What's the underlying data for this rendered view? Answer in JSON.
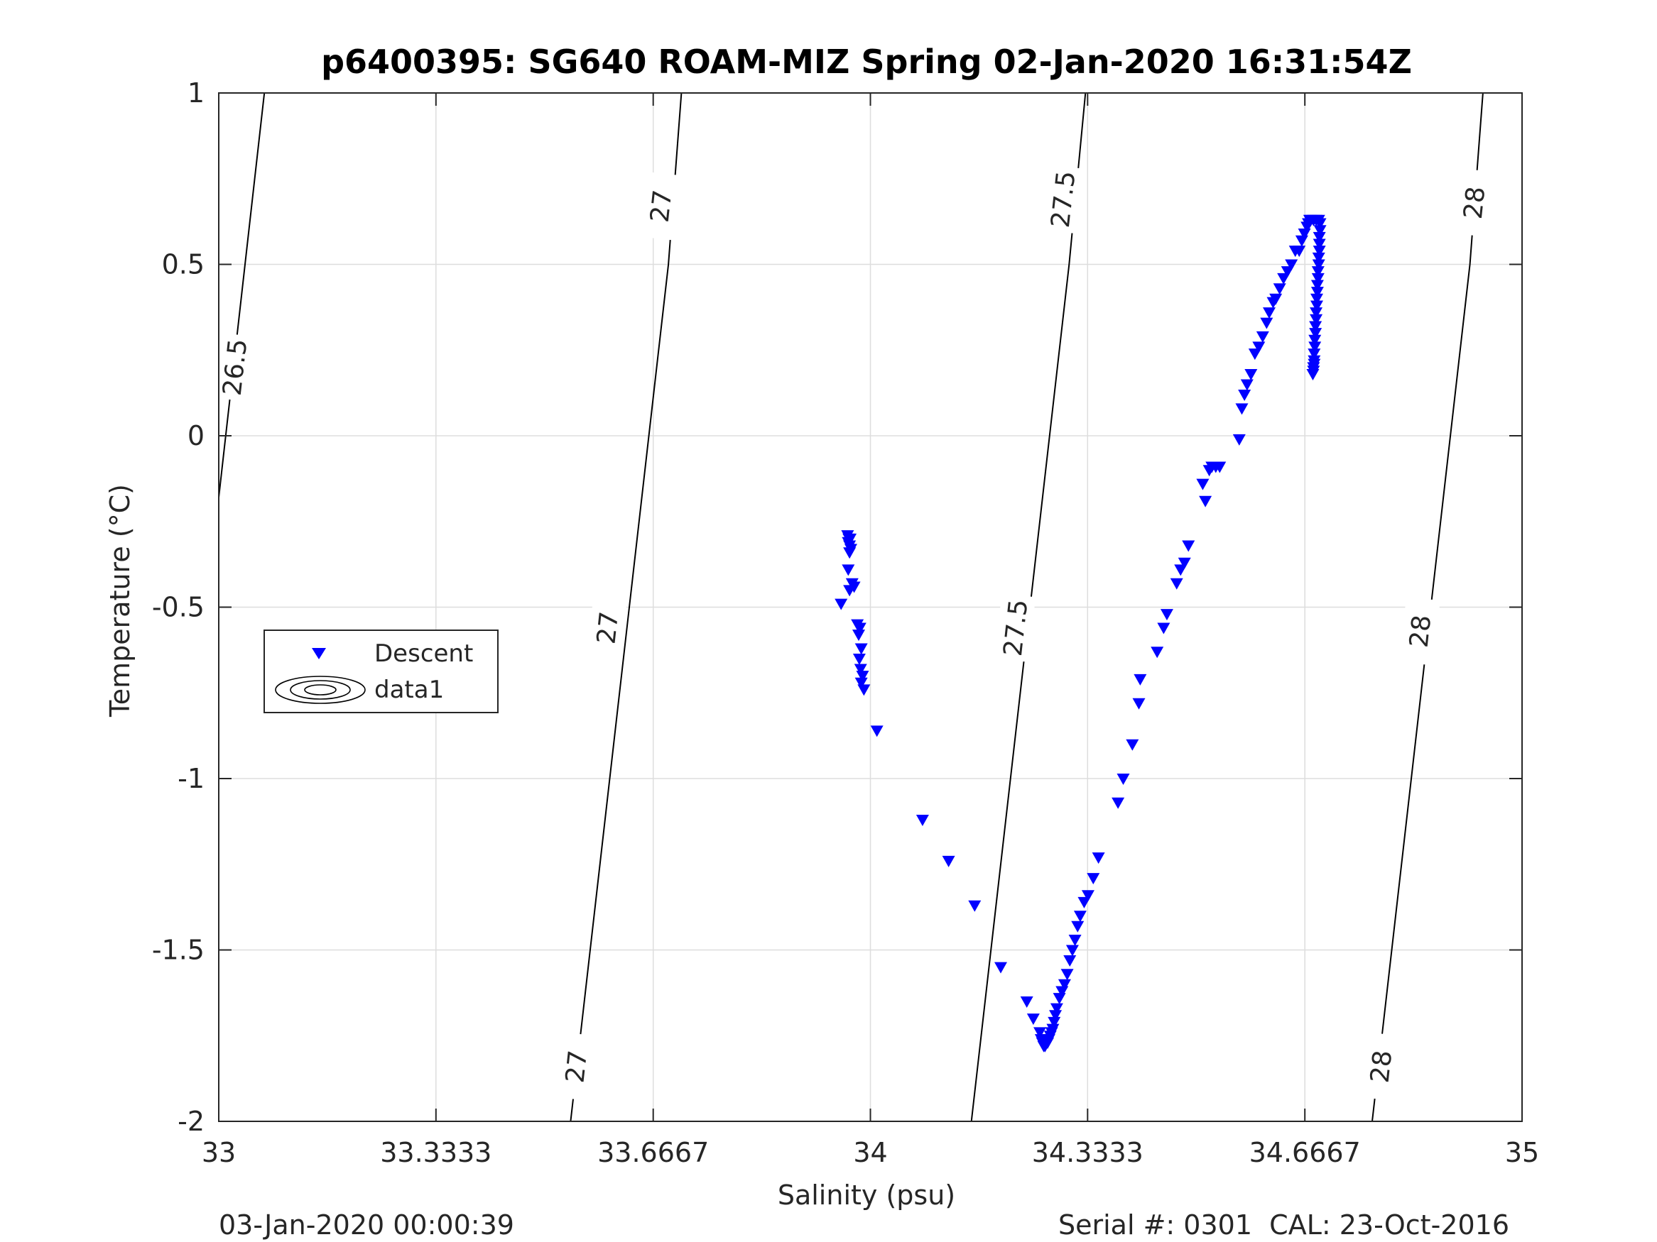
{
  "chart_data": {
    "type": "scatter",
    "title": "p6400395: SG640 ROAM-MIZ Spring 02-Jan-2020 16:31:54Z",
    "xlabel": "Salinity (psu)",
    "ylabel": "Temperature (°C)",
    "xlim": [
      33,
      35
    ],
    "ylim": [
      -2,
      1
    ],
    "xticks": [
      {
        "value": 33,
        "label": "33"
      },
      {
        "value": 33.3333,
        "label": "33.3333"
      },
      {
        "value": 33.6667,
        "label": "33.6667"
      },
      {
        "value": 34,
        "label": "34"
      },
      {
        "value": 34.3333,
        "label": "34.3333"
      },
      {
        "value": 34.6667,
        "label": "34.6667"
      },
      {
        "value": 35,
        "label": "35"
      }
    ],
    "yticks": [
      {
        "value": 1,
        "label": "1"
      },
      {
        "value": 0.5,
        "label": "0.5"
      },
      {
        "value": 0,
        "label": "0"
      },
      {
        "value": -0.5,
        "label": "-0.5"
      },
      {
        "value": -1,
        "label": "-1"
      },
      {
        "value": -1.5,
        "label": "-1.5"
      },
      {
        "value": -2,
        "label": "-2"
      }
    ],
    "grid": true,
    "legend": {
      "placement": "middle-left",
      "entries": [
        {
          "label": "Descent",
          "marker": "triangle-down",
          "color": "#0000ff"
        },
        {
          "label": "data1",
          "marker": "contour",
          "color": "#000000"
        }
      ]
    },
    "footer_left": "03-Jan-2020 00:00:39",
    "footer_right": "Serial #: 0301  CAL: 23-Oct-2016",
    "contours": [
      {
        "level": "26.5",
        "points": [
          [
            33.0,
            -0.18
          ],
          [
            33.07,
            1.0
          ]
        ],
        "labels": [
          {
            "x": 33.024,
            "y": 0.2
          }
        ]
      },
      {
        "level": "27",
        "points": [
          [
            33.54,
            -2.0
          ],
          [
            33.69,
            0.5
          ],
          [
            33.71,
            1.0
          ]
        ],
        "labels": [
          {
            "x": 33.678,
            "y": 0.67
          },
          {
            "x": 33.596,
            "y": -0.56
          },
          {
            "x": 33.548,
            "y": -1.84
          }
        ]
      },
      {
        "level": "27.5",
        "points": [
          [
            34.155,
            -2.0
          ],
          [
            34.305,
            0.5
          ],
          [
            34.33,
            1.0
          ]
        ],
        "labels": [
          {
            "x": 34.295,
            "y": 0.69
          },
          {
            "x": 34.222,
            "y": -0.56
          }
        ]
      },
      {
        "level": "28",
        "points": [
          [
            34.77,
            -2.0
          ],
          [
            34.92,
            0.5
          ],
          [
            34.94,
            1.0
          ]
        ],
        "labels": [
          {
            "x": 34.926,
            "y": 0.68
          },
          {
            "x": 34.843,
            "y": -0.57
          },
          {
            "x": 34.783,
            "y": -1.84
          }
        ]
      }
    ],
    "series": [
      {
        "name": "Descent",
        "marker": "triangle-down",
        "color": "#0000ff",
        "points": [
          [
            33.965,
            -0.29
          ],
          [
            33.967,
            -0.3
          ],
          [
            33.969,
            -0.3
          ],
          [
            33.966,
            -0.31
          ],
          [
            33.968,
            -0.32
          ],
          [
            33.97,
            -0.33
          ],
          [
            33.968,
            -0.34
          ],
          [
            33.966,
            -0.39
          ],
          [
            33.972,
            -0.43
          ],
          [
            33.968,
            -0.45
          ],
          [
            33.975,
            -0.44
          ],
          [
            33.955,
            -0.49
          ],
          [
            33.98,
            -0.55
          ],
          [
            33.984,
            -0.56
          ],
          [
            33.982,
            -0.58
          ],
          [
            33.986,
            -0.62
          ],
          [
            33.983,
            -0.65
          ],
          [
            33.985,
            -0.68
          ],
          [
            33.988,
            -0.7
          ],
          [
            33.986,
            -0.72
          ],
          [
            33.99,
            -0.74
          ],
          [
            34.01,
            -0.86
          ],
          [
            34.08,
            -1.12
          ],
          [
            34.12,
            -1.24
          ],
          [
            34.16,
            -1.37
          ],
          [
            34.2,
            -1.55
          ],
          [
            34.24,
            -1.65
          ],
          [
            34.25,
            -1.7
          ],
          [
            34.26,
            -1.74
          ],
          [
            34.262,
            -1.76
          ],
          [
            34.264,
            -1.77
          ],
          [
            34.266,
            -1.78
          ],
          [
            34.268,
            -1.78
          ],
          [
            34.27,
            -1.77
          ],
          [
            34.272,
            -1.77
          ],
          [
            34.274,
            -1.76
          ],
          [
            34.276,
            -1.75
          ],
          [
            34.278,
            -1.74
          ],
          [
            34.28,
            -1.73
          ],
          [
            34.282,
            -1.71
          ],
          [
            34.284,
            -1.69
          ],
          [
            34.286,
            -1.67
          ],
          [
            34.29,
            -1.64
          ],
          [
            34.294,
            -1.62
          ],
          [
            34.298,
            -1.6
          ],
          [
            34.302,
            -1.57
          ],
          [
            34.306,
            -1.53
          ],
          [
            34.31,
            -1.5
          ],
          [
            34.314,
            -1.47
          ],
          [
            34.318,
            -1.43
          ],
          [
            34.322,
            -1.4
          ],
          [
            34.328,
            -1.36
          ],
          [
            34.334,
            -1.34
          ],
          [
            34.342,
            -1.29
          ],
          [
            34.35,
            -1.23
          ],
          [
            34.38,
            -1.07
          ],
          [
            34.388,
            -1.0
          ],
          [
            34.402,
            -0.9
          ],
          [
            34.412,
            -0.78
          ],
          [
            34.414,
            -0.71
          ],
          [
            34.44,
            -0.63
          ],
          [
            34.45,
            -0.56
          ],
          [
            34.455,
            -0.52
          ],
          [
            34.47,
            -0.43
          ],
          [
            34.476,
            -0.39
          ],
          [
            34.482,
            -0.37
          ],
          [
            34.488,
            -0.32
          ],
          [
            34.51,
            -0.14
          ],
          [
            34.514,
            -0.19
          ],
          [
            34.52,
            -0.1
          ],
          [
            34.524,
            -0.09
          ],
          [
            34.53,
            -0.09
          ],
          [
            34.536,
            -0.09
          ],
          [
            34.566,
            -0.01
          ],
          [
            34.57,
            0.08
          ],
          [
            34.574,
            0.12
          ],
          [
            34.578,
            0.15
          ],
          [
            34.584,
            0.18
          ],
          [
            34.59,
            0.24
          ],
          [
            34.596,
            0.26
          ],
          [
            34.602,
            0.29
          ],
          [
            34.608,
            0.33
          ],
          [
            34.612,
            0.36
          ],
          [
            34.618,
            0.39
          ],
          [
            34.622,
            0.4
          ],
          [
            34.628,
            0.43
          ],
          [
            34.634,
            0.46
          ],
          [
            34.64,
            0.48
          ],
          [
            34.646,
            0.5
          ],
          [
            34.652,
            0.54
          ],
          [
            34.658,
            0.54
          ],
          [
            34.662,
            0.57
          ],
          [
            34.666,
            0.59
          ],
          [
            34.67,
            0.61
          ],
          [
            34.672,
            0.62
          ],
          [
            34.674,
            0.63
          ],
          [
            34.676,
            0.63
          ],
          [
            34.68,
            0.63
          ],
          [
            34.684,
            0.63
          ],
          [
            34.688,
            0.63
          ],
          [
            34.69,
            0.62
          ],
          [
            34.69,
            0.6
          ],
          [
            34.689,
            0.58
          ],
          [
            34.689,
            0.56
          ],
          [
            34.689,
            0.54
          ],
          [
            34.688,
            0.52
          ],
          [
            34.688,
            0.5
          ],
          [
            34.687,
            0.48
          ],
          [
            34.687,
            0.46
          ],
          [
            34.686,
            0.44
          ],
          [
            34.686,
            0.42
          ],
          [
            34.685,
            0.4
          ],
          [
            34.685,
            0.38
          ],
          [
            34.684,
            0.36
          ],
          [
            34.684,
            0.34
          ],
          [
            34.683,
            0.32
          ],
          [
            34.683,
            0.3
          ],
          [
            34.682,
            0.28
          ],
          [
            34.682,
            0.26
          ],
          [
            34.681,
            0.24
          ],
          [
            34.681,
            0.22
          ],
          [
            34.68,
            0.2
          ],
          [
            34.679,
            0.18
          ],
          [
            34.68,
            0.19
          ],
          [
            34.681,
            0.21
          ]
        ]
      }
    ]
  }
}
